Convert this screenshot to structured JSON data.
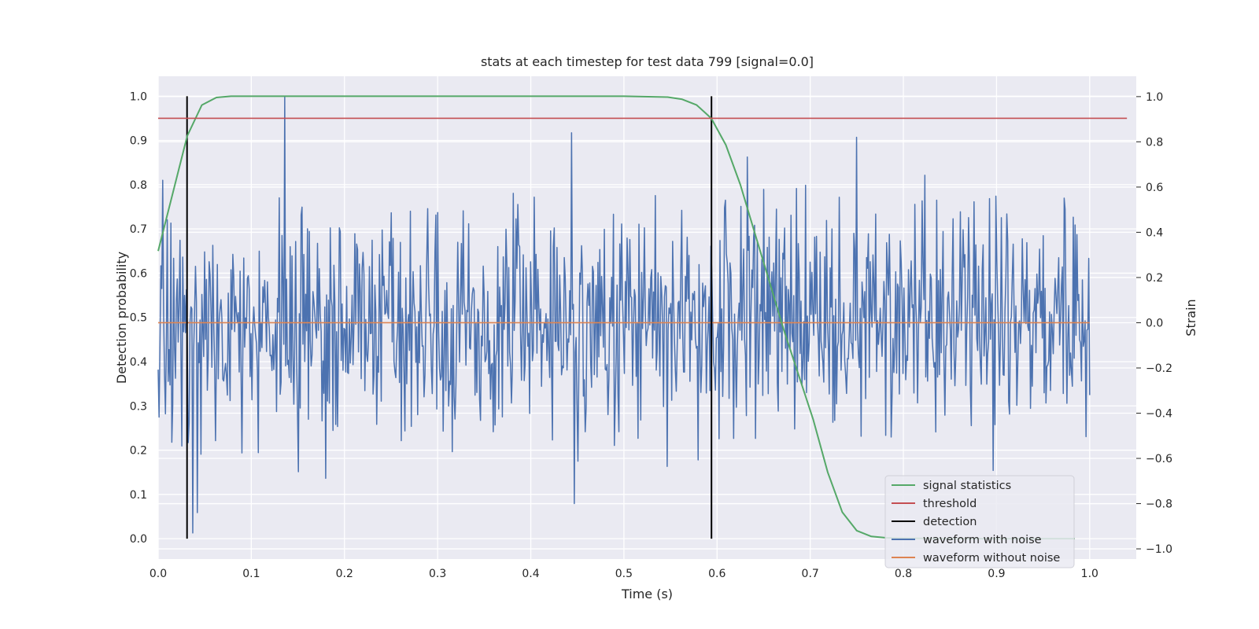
{
  "chart_data": {
    "type": "line",
    "title": "stats at each timestep for test data 799 [signal=0.0]",
    "xlabel": "Time (s)",
    "ylabel_left": "Detection probability",
    "ylabel_right": "Strain",
    "xlim": [
      0.0,
      1.05
    ],
    "ylim_left": [
      -0.046,
      1.045
    ],
    "ylim_right": [
      -1.045,
      1.09
    ],
    "grid": true,
    "legend_position": "lower-right",
    "x_ticks": [
      "0.0",
      "0.1",
      "0.2",
      "0.3",
      "0.4",
      "0.5",
      "0.6",
      "0.7",
      "0.8",
      "0.9",
      "1.0"
    ],
    "x_tick_values": [
      0.0,
      0.1,
      0.2,
      0.3,
      0.4,
      0.5,
      0.6,
      0.7,
      0.8,
      0.9,
      1.0
    ],
    "y_left_ticks": [
      "0.0",
      "0.1",
      "0.2",
      "0.3",
      "0.4",
      "0.5",
      "0.6",
      "0.7",
      "0.8",
      "0.9",
      "1.0"
    ],
    "y_left_tick_values": [
      0.0,
      0.1,
      0.2,
      0.3,
      0.4,
      0.5,
      0.6,
      0.7,
      0.8,
      0.9,
      1.0
    ],
    "y_right_ticks": [
      "−1.0",
      "−0.8",
      "−0.6",
      "−0.4",
      "−0.2",
      "0.0",
      "0.2",
      "0.4",
      "0.6",
      "0.8",
      "1.0"
    ],
    "y_right_tick_values": [
      -1.0,
      -0.8,
      -0.6,
      -0.4,
      -0.2,
      0.0,
      0.2,
      0.4,
      0.6,
      0.8,
      1.0
    ],
    "colors": {
      "background": "#eaeaf2",
      "grid": "#ffffff",
      "signal_statistics": "#55a868",
      "threshold": "#c44e52",
      "detection": "#000000",
      "waveform_with_noise": "#4c72b0",
      "waveform_without_noise": "#dd8452"
    },
    "series": [
      {
        "name": "signal statistics",
        "axis": "left",
        "x": [
          0.0,
          0.0156,
          0.0312,
          0.0469,
          0.0625,
          0.0781,
          0.1,
          0.2,
          0.3,
          0.4,
          0.5,
          0.547,
          0.5625,
          0.5781,
          0.5938,
          0.6094,
          0.625,
          0.6406,
          0.6563,
          0.6719,
          0.6875,
          0.7031,
          0.7188,
          0.7344,
          0.75,
          0.7656,
          0.7813,
          0.8,
          0.85,
          0.9,
          0.95,
          0.984
        ],
        "y": [
          0.65,
          0.78,
          0.91,
          0.98,
          0.997,
          1.0,
          1.0,
          1.0,
          1.0,
          1.0,
          1.0,
          0.998,
          0.993,
          0.98,
          0.95,
          0.89,
          0.8,
          0.69,
          0.58,
          0.47,
          0.37,
          0.27,
          0.15,
          0.06,
          0.018,
          0.005,
          0.002,
          0.001,
          0.0,
          0.0,
          0.0,
          0.0
        ]
      },
      {
        "name": "threshold",
        "axis": "left",
        "x": [
          0.0,
          1.04
        ],
        "y": [
          0.95,
          0.95
        ]
      },
      {
        "name": "detection",
        "axis": "left",
        "segments": [
          {
            "x": 0.031,
            "y": [
              0.0,
              1.0
            ]
          },
          {
            "x": 0.594,
            "y": [
              0.0,
              1.0
            ]
          }
        ]
      },
      {
        "name": "waveform with noise",
        "axis": "right",
        "x_start": 0.0,
        "x_end": 1.0,
        "n_points": 1024,
        "y_range": [
          -0.93,
          1.0
        ],
        "y_std": 0.25,
        "notable_points": [
          {
            "x": 0.136,
            "y": 1.0
          },
          {
            "x": 0.447,
            "y": -0.8
          },
          {
            "x": 0.444,
            "y": 0.84
          },
          {
            "x": 0.75,
            "y": 0.82
          },
          {
            "x": 0.0048,
            "y": 0.63
          },
          {
            "x": 0.037,
            "y": -0.93
          },
          {
            "x": 0.042,
            "y": -0.84
          }
        ]
      },
      {
        "name": "waveform without noise",
        "axis": "right",
        "x": [
          0.0,
          1.0
        ],
        "y": [
          0.0,
          0.0
        ]
      }
    ],
    "legend": [
      "signal statistics",
      "threshold",
      "detection",
      "waveform with noise",
      "waveform without noise"
    ]
  }
}
